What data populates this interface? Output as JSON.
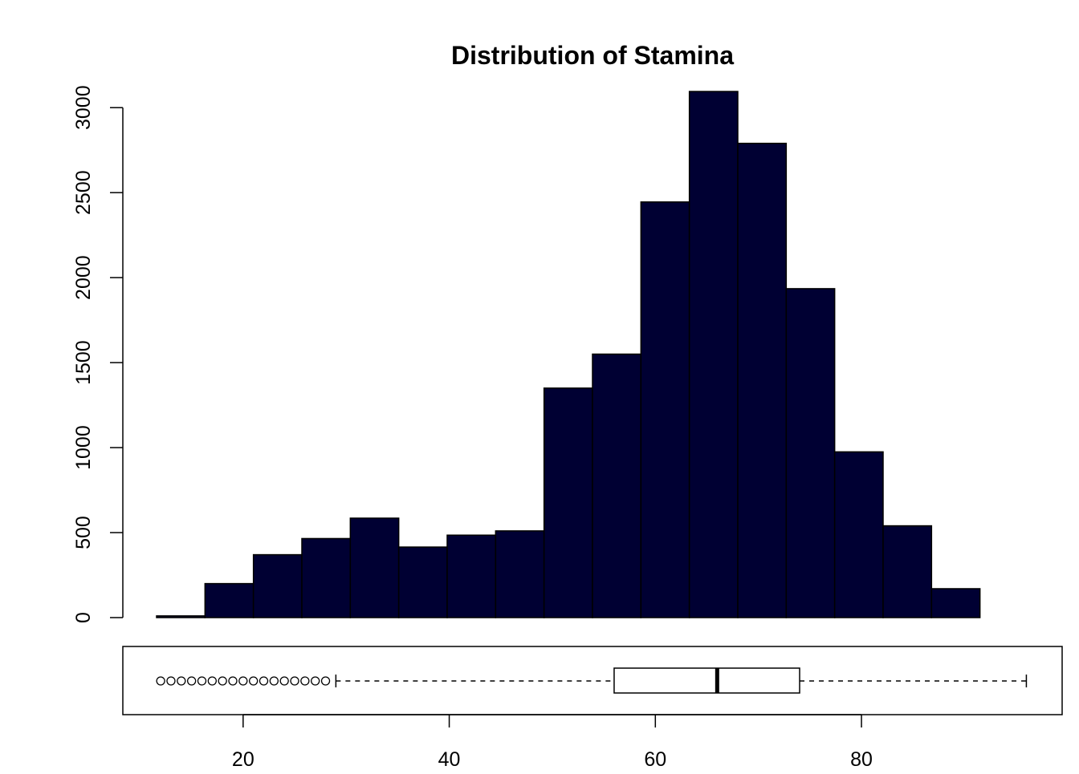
{
  "chart_data": {
    "type": "bar",
    "title": "Distribution of Stamina",
    "xlabel": "",
    "ylabel": "",
    "bin_edges": [
      11.6,
      16.3,
      21.0,
      25.7,
      30.4,
      35.1,
      39.8,
      44.5,
      49.2,
      53.9,
      58.6,
      63.3,
      68.0,
      72.7,
      77.4,
      82.1,
      86.8,
      91.5,
      96.2
    ],
    "values": [
      10,
      200,
      370,
      465,
      585,
      415,
      485,
      510,
      1350,
      1550,
      2445,
      3095,
      2790,
      1935,
      975,
      540,
      170,
      0
    ],
    "ylim": [
      0,
      3100
    ],
    "xlim": [
      11.6,
      96.2
    ],
    "y_ticks": [
      "0",
      "500",
      "1000",
      "1500",
      "2000",
      "2500",
      "3000"
    ],
    "x_ticks": [
      "20",
      "40",
      "60",
      "80"
    ],
    "bar_color": "#000033",
    "boxplot": {
      "min_whisker": 29,
      "q1": 56,
      "median": 66,
      "q3": 74,
      "max_whisker": 96,
      "outliers": [
        12,
        13,
        14,
        15,
        16,
        17,
        18,
        19,
        20,
        21,
        22,
        23,
        24,
        25,
        26,
        27,
        28
      ]
    }
  }
}
